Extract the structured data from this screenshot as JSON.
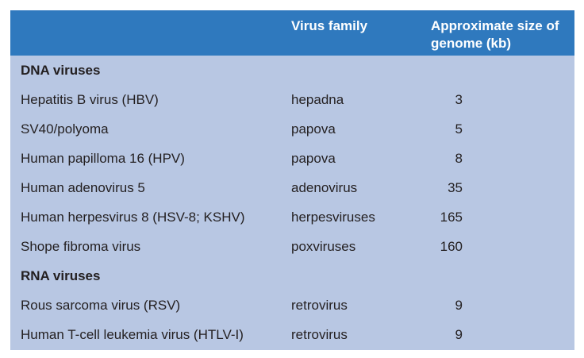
{
  "colors": {
    "header_bg": "#2f79be",
    "header_text": "#ffffff",
    "body_bg": "#b8c7e3",
    "body_text": "#231f20",
    "page_bg": "#ffffff"
  },
  "table": {
    "header": {
      "family": "Virus family",
      "size": "Approximate size of genome (kb)"
    },
    "sections": [
      {
        "label": "DNA viruses",
        "rows": [
          {
            "name": "Hepatitis B virus (HBV)",
            "family": "hepadna",
            "size": "3"
          },
          {
            "name": "SV40/polyoma",
            "family": "papova",
            "size": "5"
          },
          {
            "name": "Human papilloma 16 (HPV)",
            "family": "papova",
            "size": "8"
          },
          {
            "name": "Human adenovirus 5",
            "family": "adenovirus",
            "size": "35"
          },
          {
            "name": "Human herpesvirus 8 (HSV-8; KSHV)",
            "family": "herpesviruses",
            "size": "165"
          },
          {
            "name": "Shope fibroma virus",
            "family": "poxviruses",
            "size": "160"
          }
        ]
      },
      {
        "label": "RNA viruses",
        "rows": [
          {
            "name": "Rous sarcoma virus (RSV)",
            "family": "retrovirus",
            "size": "9"
          },
          {
            "name": "Human T-cell leukemia virus (HTLV-I)",
            "family": "retrovirus",
            "size": "9"
          }
        ]
      }
    ]
  },
  "chart_data": {
    "type": "table",
    "title": "",
    "columns": [
      "Virus",
      "Virus family",
      "Approximate size of genome (kb)"
    ],
    "rows": [
      [
        "DNA viruses",
        "",
        ""
      ],
      [
        "Hepatitis B virus (HBV)",
        "hepadna",
        3
      ],
      [
        "SV40/polyoma",
        "papova",
        5
      ],
      [
        "Human papilloma 16 (HPV)",
        "papova",
        8
      ],
      [
        "Human adenovirus 5",
        "adenovirus",
        35
      ],
      [
        "Human herpesvirus 8 (HSV-8; KSHV)",
        "herpesviruses",
        165
      ],
      [
        "Shope fibroma virus",
        "poxviruses",
        160
      ],
      [
        "RNA viruses",
        "",
        ""
      ],
      [
        "Rous sarcoma virus (RSV)",
        "retrovirus",
        9
      ],
      [
        "Human T-cell leukemia virus (HTLV-I)",
        "retrovirus",
        9
      ]
    ]
  }
}
